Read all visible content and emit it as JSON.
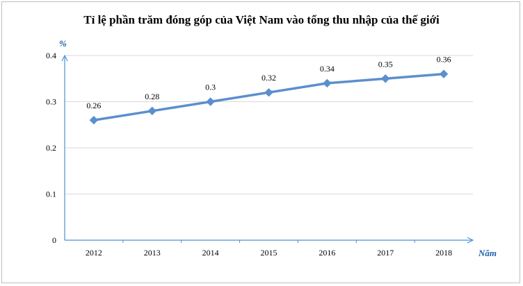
{
  "chart_data": {
    "type": "line",
    "title": "Tỉ lệ phần trăm đóng góp của Việt Nam vào tổng thu nhập của thế giới",
    "ylabel": "%",
    "xlabel": "Năm",
    "categories": [
      "2012",
      "2013",
      "2014",
      "2015",
      "2016",
      "2017",
      "2018"
    ],
    "values": [
      0.26,
      0.28,
      0.3,
      0.32,
      0.34,
      0.35,
      0.36
    ],
    "data_labels": [
      "0.26",
      "0.28",
      "0.3",
      "0.32",
      "0.34",
      "0.35",
      "0.36"
    ],
    "yticks": [
      "0",
      "0.1",
      "0.2",
      "0.3",
      "0.4"
    ],
    "ylim": [
      0,
      0.4
    ],
    "grid": true,
    "legend": "none",
    "colors": {
      "line": "#5b8fce",
      "axis": "#4a90d9",
      "grid": "#d9d9d9",
      "unit": "#1f5fa8"
    }
  }
}
